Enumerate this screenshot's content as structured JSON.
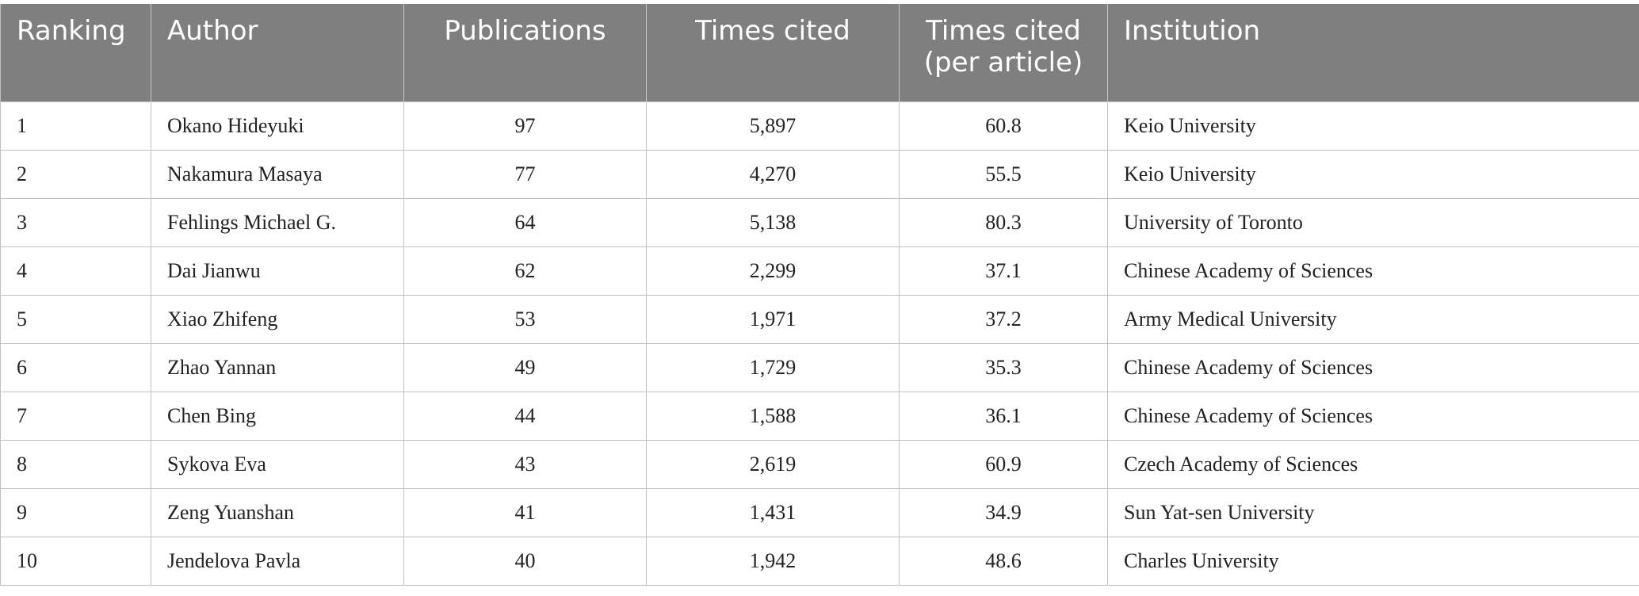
{
  "table": {
    "header": [
      "Ranking",
      "Author",
      "Publications",
      "Times cited",
      "Times cited (per article)",
      "Institution"
    ],
    "rows": [
      [
        "1",
        "Okano Hideyuki",
        "97",
        "5,897",
        "60.8",
        "Keio University"
      ],
      [
        "2",
        "Nakamura Masaya",
        "77",
        "4,270",
        "55.5",
        "Keio University"
      ],
      [
        "3",
        "Fehlings Michael G.",
        "64",
        "5,138",
        "80.3",
        "University of Toronto"
      ],
      [
        "4",
        "Dai Jianwu",
        "62",
        "2,299",
        "37.1",
        "Chinese Academy of Sciences"
      ],
      [
        "5",
        "Xiao Zhifeng",
        "53",
        "1,971",
        "37.2",
        "Army Medical University"
      ],
      [
        "6",
        "Zhao Yannan",
        "49",
        "1,729",
        "35.3",
        "Chinese Academy of Sciences"
      ],
      [
        "7",
        "Chen Bing",
        "44",
        "1,588",
        "36.1",
        "Chinese Academy of Sciences"
      ],
      [
        "8",
        "Sykova Eva",
        "43",
        "2,619",
        "60.9",
        "Czech Academy of Sciences"
      ],
      [
        "9",
        "Zeng Yuanshan",
        "41",
        "1,431",
        "34.9",
        "Sun Yat-sen University"
      ],
      [
        "10",
        "Jendelova Pavla",
        "40",
        "1,942",
        "48.6",
        "Charles University"
      ]
    ]
  }
}
